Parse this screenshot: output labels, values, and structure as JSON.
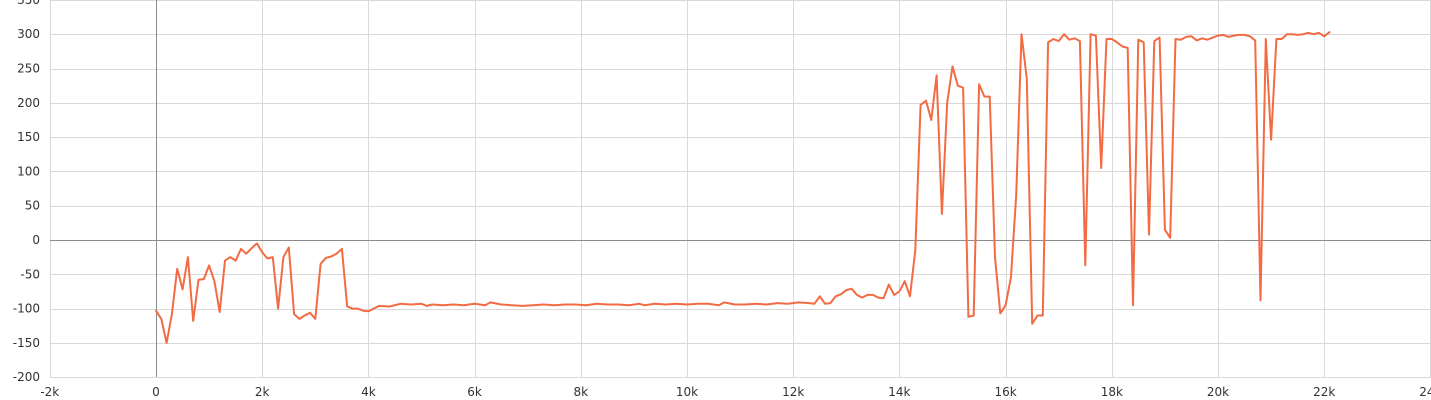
{
  "chart_data": {
    "type": "line",
    "xlim": [
      -2000,
      24000
    ],
    "ylim": [
      -200,
      350
    ],
    "grid": true,
    "x_ticks": [
      -2000,
      0,
      2000,
      4000,
      6000,
      8000,
      10000,
      12000,
      14000,
      16000,
      18000,
      20000,
      22000,
      24000
    ],
    "x_tick_labels": [
      "-2k",
      "0",
      "2k",
      "4k",
      "6k",
      "8k",
      "10k",
      "12k",
      "14k",
      "16k",
      "18k",
      "20k",
      "22k",
      "24k"
    ],
    "y_ticks": [
      -200,
      -150,
      -100,
      -50,
      0,
      50,
      100,
      150,
      200,
      250,
      300,
      350
    ],
    "y_tick_labels": [
      "-200",
      "-150",
      "-100",
      "-50",
      "0",
      "50",
      "100",
      "150",
      "200",
      "250",
      "300",
      "350"
    ],
    "series": [
      {
        "color": "#f26b43",
        "points": [
          [
            0,
            -103
          ],
          [
            100,
            -115
          ],
          [
            200,
            -150
          ],
          [
            300,
            -108
          ],
          [
            400,
            -42
          ],
          [
            500,
            -72
          ],
          [
            600,
            -25
          ],
          [
            700,
            -118
          ],
          [
            800,
            -58
          ],
          [
            900,
            -57
          ],
          [
            1000,
            -37
          ],
          [
            1100,
            -60
          ],
          [
            1200,
            -105
          ],
          [
            1300,
            -30
          ],
          [
            1400,
            -25
          ],
          [
            1500,
            -30
          ],
          [
            1600,
            -13
          ],
          [
            1700,
            -20
          ],
          [
            1800,
            -12
          ],
          [
            1900,
            -5
          ],
          [
            2000,
            -18
          ],
          [
            2100,
            -27
          ],
          [
            2200,
            -25
          ],
          [
            2300,
            -100
          ],
          [
            2400,
            -25
          ],
          [
            2500,
            -11
          ],
          [
            2600,
            -108
          ],
          [
            2700,
            -115
          ],
          [
            2800,
            -110
          ],
          [
            2900,
            -106
          ],
          [
            3000,
            -115
          ],
          [
            3100,
            -35
          ],
          [
            3200,
            -26
          ],
          [
            3300,
            -24
          ],
          [
            3400,
            -20
          ],
          [
            3500,
            -13
          ],
          [
            3600,
            -97
          ],
          [
            3700,
            -100
          ],
          [
            3800,
            -100
          ],
          [
            3900,
            -103
          ],
          [
            4000,
            -104
          ],
          [
            4200,
            -96
          ],
          [
            4400,
            -97
          ],
          [
            4600,
            -93
          ],
          [
            4800,
            -94
          ],
          [
            5000,
            -93
          ],
          [
            5100,
            -96
          ],
          [
            5200,
            -94
          ],
          [
            5400,
            -95
          ],
          [
            5600,
            -94
          ],
          [
            5800,
            -95
          ],
          [
            6000,
            -93
          ],
          [
            6200,
            -95
          ],
          [
            6300,
            -91
          ],
          [
            6500,
            -94
          ],
          [
            6700,
            -95
          ],
          [
            6900,
            -96
          ],
          [
            7100,
            -95
          ],
          [
            7300,
            -94
          ],
          [
            7500,
            -95
          ],
          [
            7700,
            -94
          ],
          [
            7900,
            -94
          ],
          [
            8100,
            -95
          ],
          [
            8300,
            -93
          ],
          [
            8500,
            -94
          ],
          [
            8700,
            -94
          ],
          [
            8900,
            -95
          ],
          [
            9100,
            -93
          ],
          [
            9200,
            -95
          ],
          [
            9400,
            -93
          ],
          [
            9600,
            -94
          ],
          [
            9800,
            -93
          ],
          [
            10000,
            -94
          ],
          [
            10200,
            -93
          ],
          [
            10400,
            -93
          ],
          [
            10600,
            -95
          ],
          [
            10700,
            -91
          ],
          [
            10900,
            -94
          ],
          [
            11100,
            -94
          ],
          [
            11300,
            -93
          ],
          [
            11500,
            -94
          ],
          [
            11700,
            -92
          ],
          [
            11900,
            -93
          ],
          [
            12100,
            -91
          ],
          [
            12300,
            -92
          ],
          [
            12400,
            -93
          ],
          [
            12500,
            -82
          ],
          [
            12600,
            -93
          ],
          [
            12700,
            -92
          ],
          [
            12800,
            -82
          ],
          [
            12900,
            -79
          ],
          [
            13000,
            -73
          ],
          [
            13100,
            -71
          ],
          [
            13200,
            -80
          ],
          [
            13300,
            -84
          ],
          [
            13400,
            -80
          ],
          [
            13500,
            -80
          ],
          [
            13600,
            -84
          ],
          [
            13700,
            -85
          ],
          [
            13800,
            -65
          ],
          [
            13900,
            -80
          ],
          [
            14000,
            -75
          ],
          [
            14100,
            -60
          ],
          [
            14200,
            -82
          ],
          [
            14300,
            -15
          ],
          [
            14400,
            197
          ],
          [
            14500,
            203
          ],
          [
            14600,
            175
          ],
          [
            14700,
            240
          ],
          [
            14800,
            38
          ],
          [
            14900,
            200
          ],
          [
            15000,
            253
          ],
          [
            15100,
            225
          ],
          [
            15200,
            222
          ],
          [
            15300,
            -112
          ],
          [
            15400,
            -110
          ],
          [
            15500,
            227
          ],
          [
            15600,
            209
          ],
          [
            15700,
            209
          ],
          [
            15800,
            -25
          ],
          [
            15900,
            -107
          ],
          [
            16000,
            -95
          ],
          [
            16100,
            -55
          ],
          [
            16200,
            65
          ],
          [
            16300,
            300
          ],
          [
            16400,
            235
          ],
          [
            16500,
            -122
          ],
          [
            16600,
            -110
          ],
          [
            16700,
            -110
          ],
          [
            16800,
            288
          ],
          [
            16900,
            293
          ],
          [
            17000,
            290
          ],
          [
            17100,
            300
          ],
          [
            17200,
            292
          ],
          [
            17300,
            294
          ],
          [
            17400,
            290
          ],
          [
            17500,
            -37
          ],
          [
            17600,
            300
          ],
          [
            17700,
            298
          ],
          [
            17800,
            105
          ],
          [
            17900,
            293
          ],
          [
            18000,
            293
          ],
          [
            18100,
            288
          ],
          [
            18200,
            282
          ],
          [
            18300,
            280
          ],
          [
            18400,
            -95
          ],
          [
            18500,
            292
          ],
          [
            18600,
            288
          ],
          [
            18700,
            8
          ],
          [
            18800,
            290
          ],
          [
            18900,
            295
          ],
          [
            19000,
            15
          ],
          [
            19100,
            3
          ],
          [
            19200,
            293
          ],
          [
            19300,
            292
          ],
          [
            19400,
            296
          ],
          [
            19500,
            297
          ],
          [
            19600,
            291
          ],
          [
            19700,
            294
          ],
          [
            19800,
            292
          ],
          [
            19900,
            295
          ],
          [
            20000,
            298
          ],
          [
            20100,
            299
          ],
          [
            20200,
            296
          ],
          [
            20300,
            298
          ],
          [
            20400,
            299
          ],
          [
            20500,
            299
          ],
          [
            20600,
            297
          ],
          [
            20700,
            291
          ],
          [
            20800,
            -88
          ],
          [
            20900,
            293
          ],
          [
            21000,
            146
          ],
          [
            21100,
            293
          ],
          [
            21200,
            293
          ],
          [
            21300,
            300
          ],
          [
            21400,
            300
          ],
          [
            21500,
            299
          ],
          [
            21600,
            300
          ],
          [
            21700,
            302
          ],
          [
            21800,
            300
          ],
          [
            21900,
            302
          ],
          [
            22000,
            297
          ],
          [
            22100,
            303
          ]
        ]
      }
    ]
  }
}
